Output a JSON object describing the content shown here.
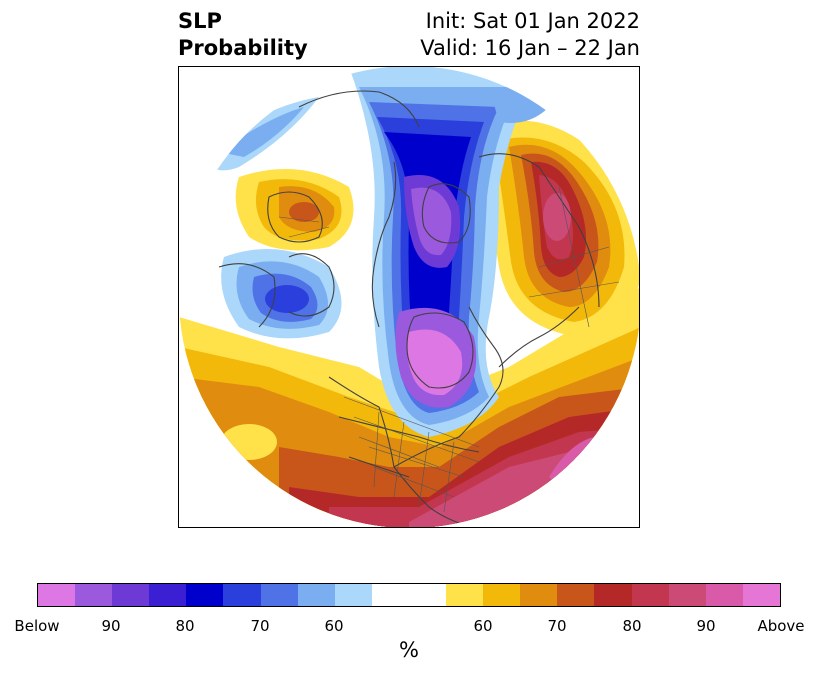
{
  "title": {
    "left_line1": "SLP",
    "left_line2": "Probability",
    "right_line1": "Init: Sat 01 Jan 2022",
    "right_line2": "Valid: 16 Jan – 22 Jan"
  },
  "map": {
    "projection": "north-polar-stereographic",
    "features": [
      "coastlines",
      "country-borders",
      "us-state-borders"
    ]
  },
  "colorbar": {
    "unit": "%",
    "colors": [
      "#dd77e3",
      "#9b59dd",
      "#6e3ad6",
      "#3a1fd3",
      "#0000cc",
      "#2a3fdc",
      "#4f72e6",
      "#7aaef0",
      "#aad7fa",
      "#ffffff",
      "#ffffff",
      "#ffe14a",
      "#f2b90a",
      "#e08c0e",
      "#c8561a",
      "#b52828",
      "#c2374f",
      "#cc4a76",
      "#d95aa8",
      "#e676d6"
    ],
    "ticks": [
      "Below",
      "90",
      "80",
      "70",
      "60",
      "60",
      "70",
      "80",
      "90",
      "Above"
    ]
  },
  "colors": {
    "below_strong": "#dd77e3",
    "above_strong": "#e676d6",
    "neutral": "#ffffff"
  }
}
